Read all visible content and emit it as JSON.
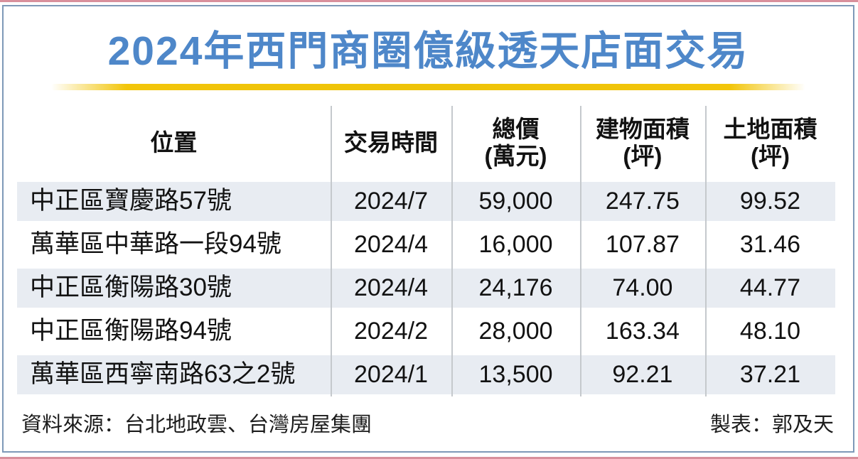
{
  "page": {
    "title": "2024年西門商圈億級透天店面交易",
    "source_note": "資料來源：台北地政雲、台灣房屋集團",
    "credit_note": "製表：郭及天"
  },
  "colors": {
    "title_blue": "#4e87c9",
    "divider_gold": "#f2c50a",
    "row_stripe": "#e8ecf2",
    "frame_blue": "#7e99b8",
    "edge_pink": "#d9909c",
    "text_black": "#121212"
  },
  "chart_data": {
    "type": "table",
    "title": "2024年西門商圈億級透天店面交易",
    "columns": [
      {
        "label": "位置",
        "sub": ""
      },
      {
        "label": "交易時間",
        "sub": ""
      },
      {
        "label": "總價",
        "sub": "(萬元)"
      },
      {
        "label": "建物面積",
        "sub": "(坪)"
      },
      {
        "label": "土地面積",
        "sub": "(坪)"
      }
    ],
    "rows": [
      [
        "中正區寶慶路57號",
        "2024/7",
        "59,000",
        "247.75",
        "99.52"
      ],
      [
        "萬華區中華路一段94號",
        "2024/4",
        "16,000",
        "107.87",
        "31.46"
      ],
      [
        "中正區衡陽路30號",
        "2024/4",
        "24,176",
        "74.00",
        "44.77"
      ],
      [
        "中正區衡陽路94號",
        "2024/2",
        "28,000",
        "163.34",
        "48.10"
      ],
      [
        "萬華區西寧南路63之2號",
        "2024/1",
        "13,500",
        "92.21",
        "37.21"
      ]
    ],
    "source": "資料來源：台北地政雲、台灣房屋集團",
    "credit": "製表：郭及天"
  }
}
